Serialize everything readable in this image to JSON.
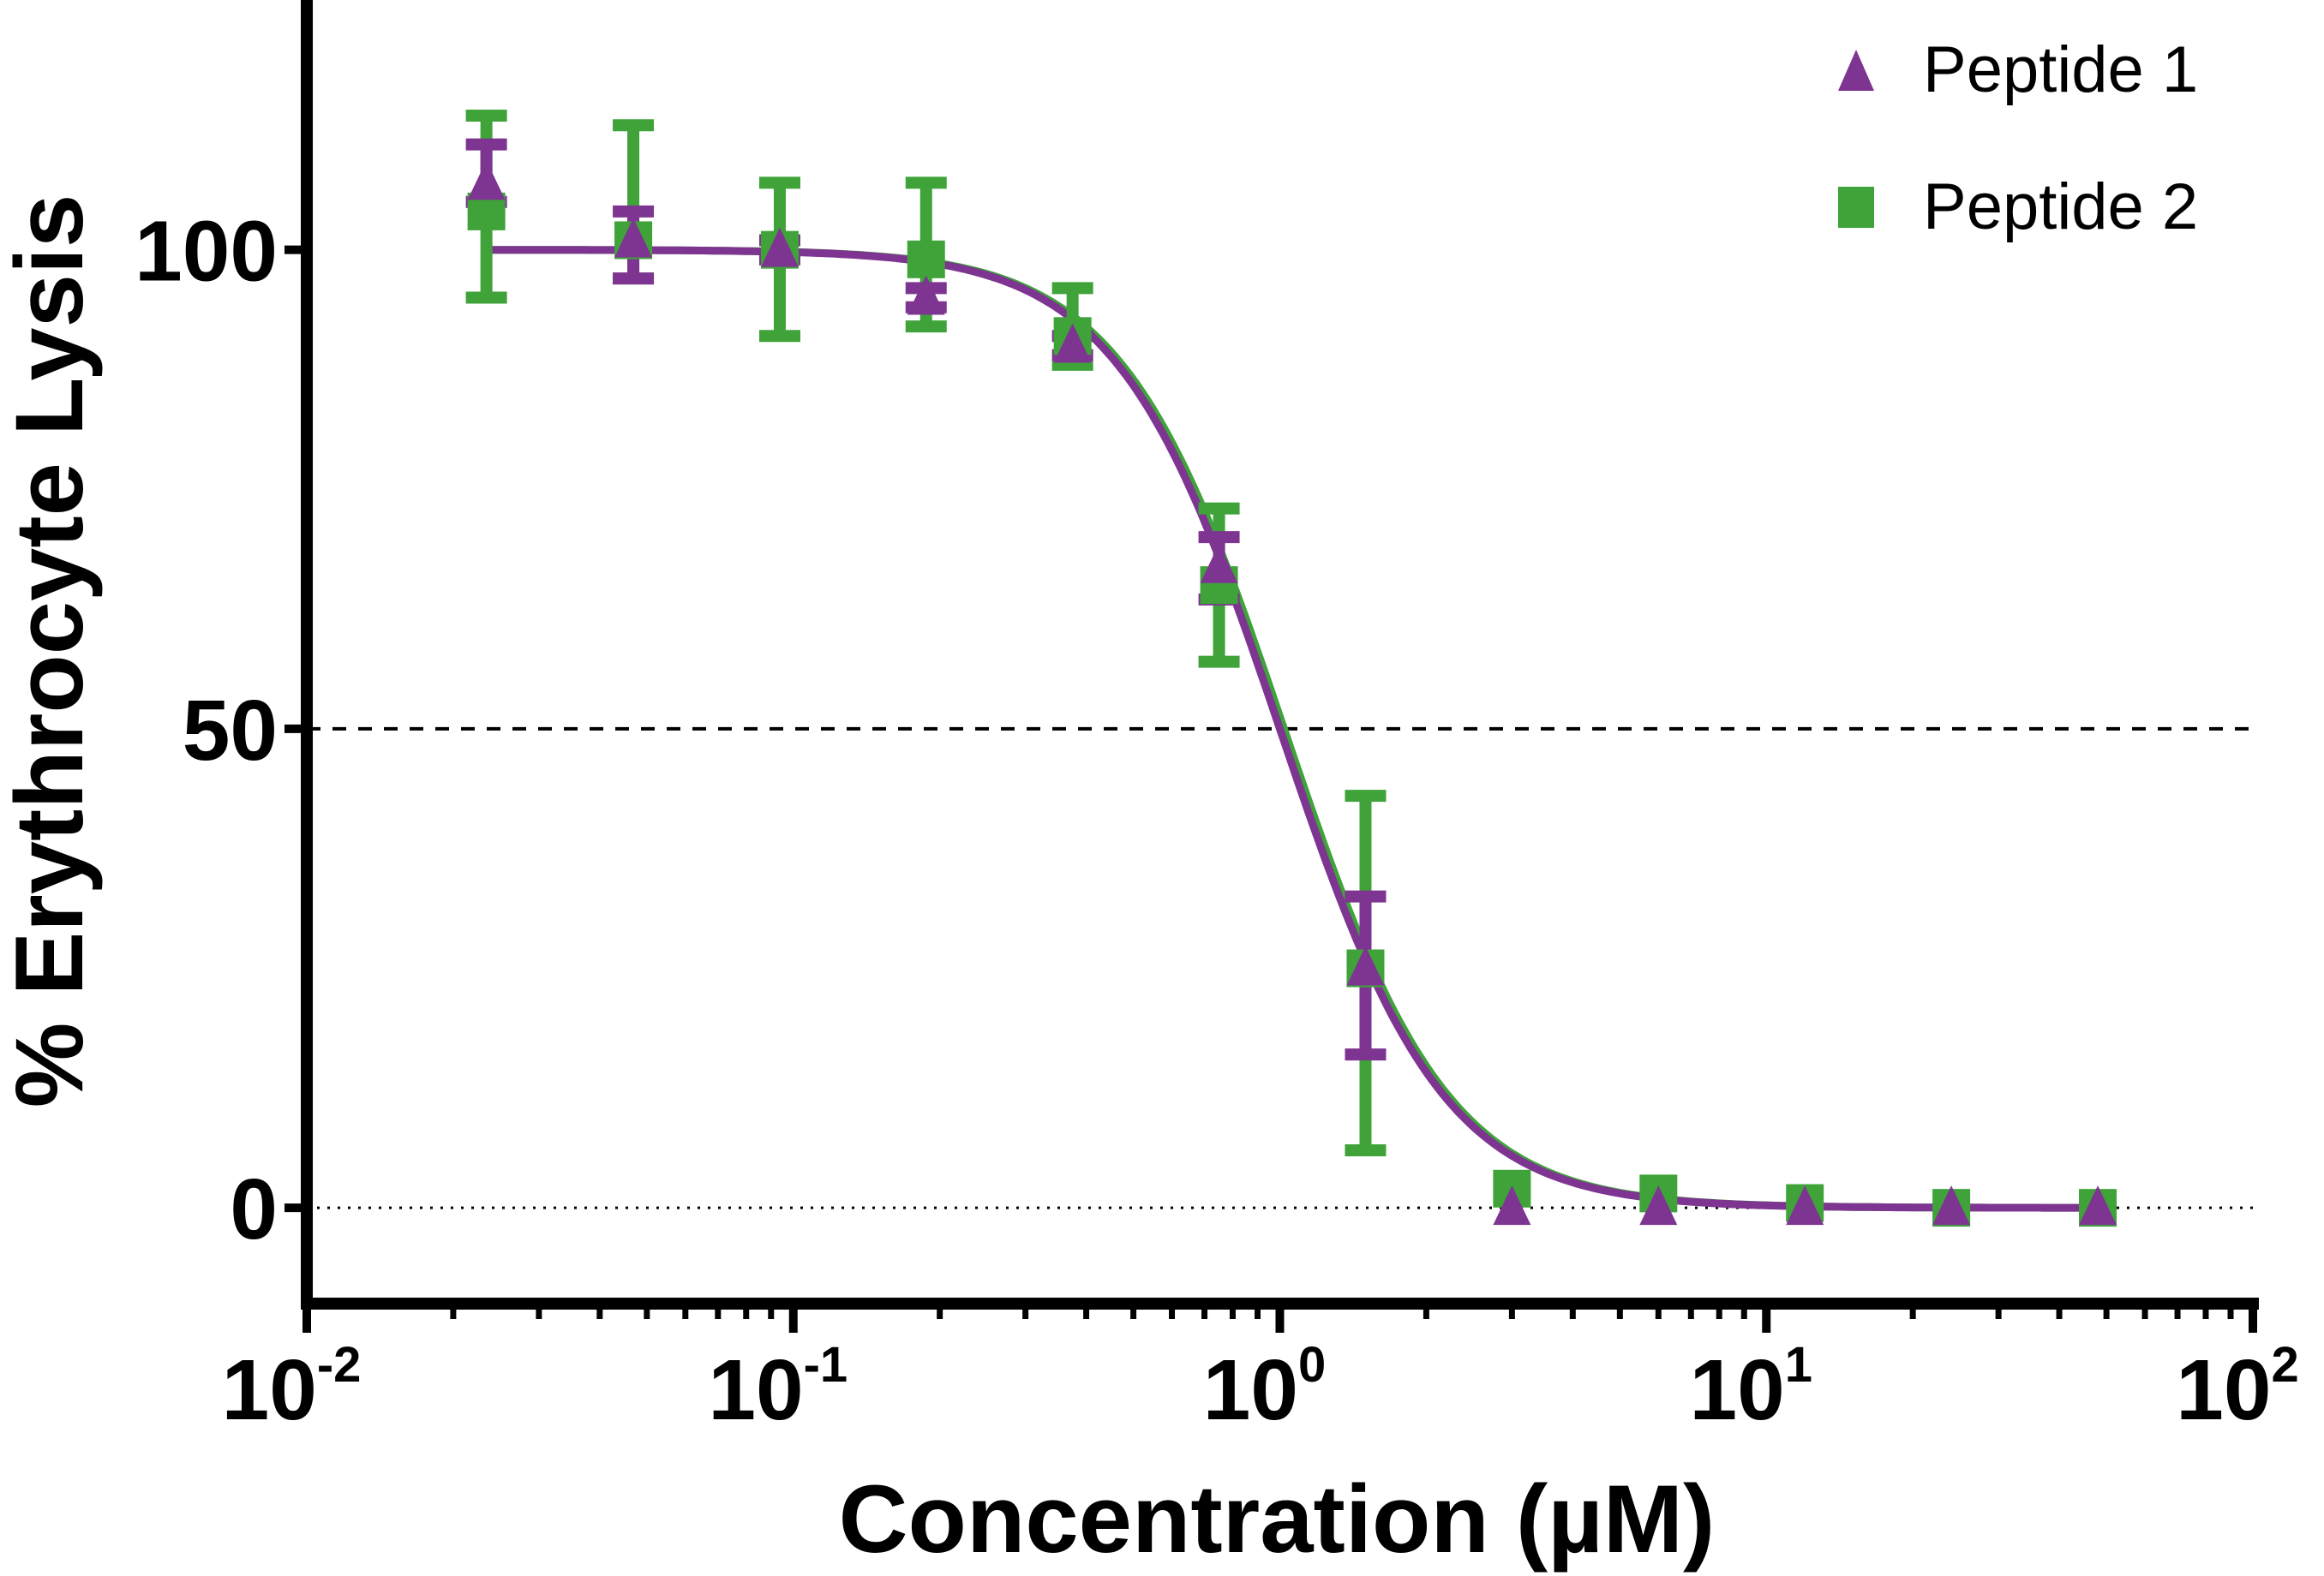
{
  "chart_data": {
    "type": "scatter",
    "title": "",
    "xlabel": "Concentration (µM)",
    "ylabel": "% Erythrocyte Lysis",
    "xscale": "log",
    "xlim": [
      0.01,
      100
    ],
    "ylim": [
      -10,
      125
    ],
    "x_ticks": [
      {
        "base": "10",
        "exp": "-2",
        "value": 0.01
      },
      {
        "base": "10",
        "exp": "-1",
        "value": 0.1
      },
      {
        "base": "10",
        "exp": "0",
        "value": 1
      },
      {
        "base": "10",
        "exp": "1",
        "value": 10
      },
      {
        "base": "10",
        "exp": "2",
        "value": 100
      }
    ],
    "y_ticks": [
      {
        "label": "0",
        "value": 0
      },
      {
        "label": "50",
        "value": 50
      },
      {
        "label": "100",
        "value": 100
      }
    ],
    "reference_lines": [
      {
        "y": 50,
        "style": "dashed"
      },
      {
        "y": 0,
        "style": "dotted"
      }
    ],
    "grid": false,
    "legend_position": "top-right",
    "x": [
      0.0234,
      0.0469,
      0.0938,
      0.1875,
      0.375,
      0.75,
      1.5,
      3,
      6,
      12,
      24,
      48
    ],
    "series": [
      {
        "name": "Peptide 1",
        "marker": "triangle",
        "color": "#7E3591",
        "values": [
          107,
          101,
          100,
          95,
          90,
          67,
          25,
          0,
          0,
          0,
          0,
          0
        ],
        "errors": [
          [
            105,
            111
          ],
          [
            97,
            104
          ],
          [
            99,
            101
          ],
          [
            94,
            96
          ],
          [
            89,
            91
          ],
          [
            63.5,
            70
          ],
          [
            16,
            32.5
          ],
          [
            0,
            0
          ],
          [
            0,
            0
          ],
          [
            0,
            0
          ],
          [
            0,
            0
          ],
          [
            0,
            0
          ]
        ],
        "fit": {
          "model": "sigmoidal dose-response",
          "top": 100,
          "bottom": 0,
          "ic50": 1.0,
          "hill": -2.6
        }
      },
      {
        "name": "Peptide 2",
        "marker": "square",
        "color": "#3FA33A",
        "values": [
          104,
          101,
          100,
          99,
          91,
          65,
          25,
          2,
          1.5,
          0.5,
          0,
          0
        ],
        "errors": [
          [
            95,
            114
          ],
          [
            97,
            113
          ],
          [
            91,
            107
          ],
          [
            92,
            107
          ],
          [
            88,
            96
          ],
          [
            57,
            73
          ],
          [
            6,
            43
          ],
          [
            2,
            2
          ],
          [
            1.5,
            1.5
          ],
          [
            0.5,
            0.5
          ],
          [
            0,
            0
          ],
          [
            0,
            0
          ]
        ],
        "fit": {
          "model": "sigmoidal dose-response",
          "top": 100,
          "bottom": 0,
          "ic50": 1.02,
          "hill": -2.6
        }
      }
    ]
  }
}
